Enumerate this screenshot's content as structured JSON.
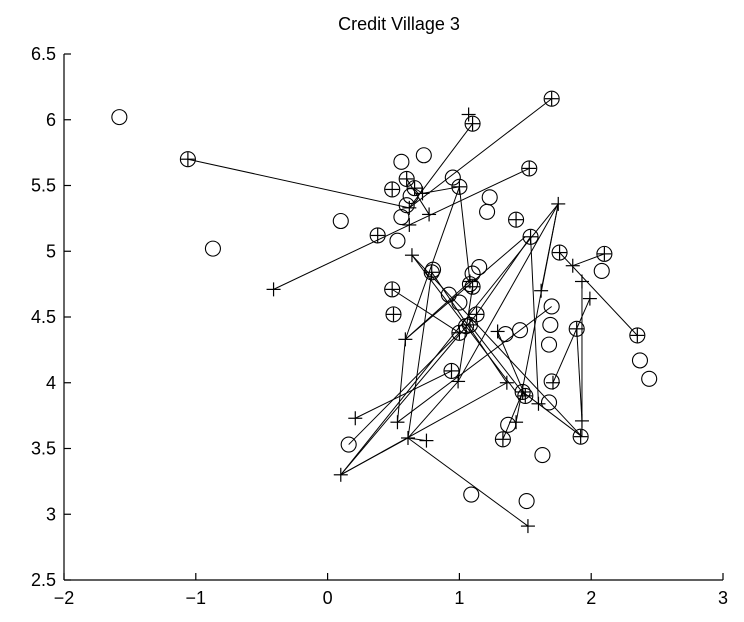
{
  "chart_data": {
    "type": "scatter",
    "title": "Credit Village 3",
    "xlabel": "",
    "ylabel": "",
    "xlim": [
      -2,
      3
    ],
    "ylim": [
      2.5,
      6.5
    ],
    "xticks": [
      "-2",
      "-1",
      "0",
      "1",
      "2",
      "3"
    ],
    "yticks": [
      "2.5",
      "3",
      "3.5",
      "4",
      "4.5",
      "5",
      "5.5",
      "6",
      "6.5"
    ],
    "grid": false,
    "legend": "none",
    "markers": {
      "circle": [
        [
          -1.58,
          6.02
        ],
        [
          -0.87,
          5.02
        ],
        [
          -1.06,
          5.7
        ],
        [
          1.7,
          6.16
        ],
        [
          1.1,
          5.97
        ],
        [
          0.56,
          5.68
        ],
        [
          0.73,
          5.73
        ],
        [
          0.6,
          5.55
        ],
        [
          0.66,
          5.48
        ],
        [
          0.49,
          5.47
        ],
        [
          0.95,
          5.56
        ],
        [
          1.0,
          5.49
        ],
        [
          1.53,
          5.63
        ],
        [
          0.1,
          5.23
        ],
        [
          0.56,
          5.26
        ],
        [
          0.6,
          5.35
        ],
        [
          0.63,
          5.42
        ],
        [
          1.23,
          5.41
        ],
        [
          1.21,
          5.3
        ],
        [
          1.43,
          5.24
        ],
        [
          0.38,
          5.12
        ],
        [
          0.53,
          5.08
        ],
        [
          1.54,
          5.11
        ],
        [
          1.76,
          4.99
        ],
        [
          2.1,
          4.98
        ],
        [
          2.08,
          4.85
        ],
        [
          0.79,
          4.84
        ],
        [
          0.8,
          4.86
        ],
        [
          1.1,
          4.83
        ],
        [
          1.15,
          4.88
        ],
        [
          1.08,
          4.75
        ],
        [
          1.1,
          4.73
        ],
        [
          0.49,
          4.71
        ],
        [
          1.0,
          4.61
        ],
        [
          0.92,
          4.67
        ],
        [
          1.7,
          4.58
        ],
        [
          1.13,
          4.52
        ],
        [
          1.69,
          4.44
        ],
        [
          0.5,
          4.52
        ],
        [
          1.08,
          4.44
        ],
        [
          1.05,
          4.43
        ],
        [
          1.0,
          4.38
        ],
        [
          1.35,
          4.37
        ],
        [
          1.46,
          4.4
        ],
        [
          1.89,
          4.41
        ],
        [
          2.35,
          4.36
        ],
        [
          1.68,
          4.29
        ],
        [
          2.37,
          4.17
        ],
        [
          2.44,
          4.03
        ],
        [
          0.94,
          4.09
        ],
        [
          1.7,
          4.01
        ],
        [
          1.48,
          3.93
        ],
        [
          1.5,
          3.9
        ],
        [
          1.68,
          3.85
        ],
        [
          1.37,
          3.68
        ],
        [
          1.33,
          3.57
        ],
        [
          1.92,
          3.59
        ],
        [
          0.16,
          3.53
        ],
        [
          1.63,
          3.45
        ],
        [
          1.09,
          3.15
        ],
        [
          1.51,
          3.1
        ]
      ],
      "plus": [
        [
          -1.06,
          5.7
        ],
        [
          1.7,
          6.16
        ],
        [
          1.07,
          6.04
        ],
        [
          1.1,
          5.97
        ],
        [
          0.6,
          5.55
        ],
        [
          0.49,
          5.47
        ],
        [
          0.66,
          5.48
        ],
        [
          0.72,
          5.44
        ],
        [
          1.0,
          5.49
        ],
        [
          0.62,
          5.33
        ],
        [
          0.77,
          5.28
        ],
        [
          1.53,
          5.63
        ],
        [
          0.38,
          5.12
        ],
        [
          0.62,
          5.2
        ],
        [
          1.43,
          5.24
        ],
        [
          1.75,
          5.36
        ],
        [
          1.54,
          5.11
        ],
        [
          1.76,
          4.99
        ],
        [
          2.1,
          4.98
        ],
        [
          1.86,
          4.89
        ],
        [
          0.64,
          4.97
        ],
        [
          0.79,
          4.84
        ],
        [
          -0.41,
          4.71
        ],
        [
          1.1,
          4.73
        ],
        [
          1.08,
          4.77
        ],
        [
          1.93,
          4.77
        ],
        [
          1.99,
          4.64
        ],
        [
          1.62,
          4.7
        ],
        [
          0.49,
          4.71
        ],
        [
          0.5,
          4.52
        ],
        [
          1.13,
          4.52
        ],
        [
          0.59,
          4.33
        ],
        [
          1.29,
          4.39
        ],
        [
          1.08,
          4.44
        ],
        [
          1.0,
          4.38
        ],
        [
          1.89,
          4.41
        ],
        [
          2.35,
          4.36
        ],
        [
          0.94,
          4.09
        ],
        [
          0.99,
          4.01
        ],
        [
          1.71,
          4.0
        ],
        [
          1.36,
          4.0
        ],
        [
          1.5,
          3.9
        ],
        [
          1.48,
          3.93
        ],
        [
          1.6,
          3.84
        ],
        [
          1.43,
          3.7
        ],
        [
          1.93,
          3.71
        ],
        [
          1.33,
          3.57
        ],
        [
          1.92,
          3.59
        ],
        [
          0.21,
          3.73
        ],
        [
          0.53,
          3.7
        ],
        [
          0.61,
          3.58
        ],
        [
          0.75,
          3.56
        ],
        [
          0.1,
          3.3
        ],
        [
          1.52,
          2.91
        ]
      ],
      "links": [
        [
          [
            -1.06,
            5.7
          ],
          [
            0.62,
            5.33
          ]
        ],
        [
          [
            0.62,
            5.33
          ],
          [
            1.7,
            6.16
          ]
        ],
        [
          [
            0.62,
            5.33
          ],
          [
            1.1,
            5.97
          ]
        ],
        [
          [
            0.66,
            5.48
          ],
          [
            0.72,
            5.44
          ]
        ],
        [
          [
            0.72,
            5.44
          ],
          [
            1.0,
            5.49
          ]
        ],
        [
          [
            0.6,
            5.55
          ],
          [
            0.77,
            5.28
          ]
        ],
        [
          [
            -0.41,
            4.71
          ],
          [
            0.62,
            5.2
          ]
        ],
        [
          [
            0.62,
            5.2
          ],
          [
            1.53,
            5.63
          ]
        ],
        [
          [
            1.0,
            5.49
          ],
          [
            0.59,
            4.33
          ]
        ],
        [
          [
            1.0,
            5.49
          ],
          [
            1.08,
            4.77
          ]
        ],
        [
          [
            1.75,
            5.36
          ],
          [
            0.99,
            4.01
          ]
        ],
        [
          [
            1.75,
            5.36
          ],
          [
            1.62,
            4.7
          ]
        ],
        [
          [
            1.75,
            5.36
          ],
          [
            0.1,
            3.3
          ]
        ],
        [
          [
            1.54,
            5.11
          ],
          [
            1.6,
            3.84
          ]
        ],
        [
          [
            1.54,
            5.11
          ],
          [
            1.13,
            4.52
          ]
        ],
        [
          [
            0.64,
            4.97
          ],
          [
            1.93,
            3.59
          ]
        ],
        [
          [
            0.64,
            4.97
          ],
          [
            1.43,
            3.93
          ]
        ],
        [
          [
            1.86,
            4.89
          ],
          [
            2.1,
            4.98
          ]
        ],
        [
          [
            0.79,
            4.84
          ],
          [
            1.36,
            4.0
          ]
        ],
        [
          [
            0.79,
            4.84
          ],
          [
            0.61,
            3.58
          ]
        ],
        [
          [
            1.08,
            4.77
          ],
          [
            0.59,
            4.33
          ]
        ],
        [
          [
            1.1,
            4.73
          ],
          [
            0.99,
            4.01
          ]
        ],
        [
          [
            1.93,
            4.77
          ],
          [
            1.93,
            3.59
          ]
        ],
        [
          [
            1.99,
            4.64
          ],
          [
            1.71,
            4.0
          ]
        ],
        [
          [
            1.29,
            4.39
          ],
          [
            1.5,
            3.9
          ]
        ],
        [
          [
            0.59,
            4.33
          ],
          [
            0.53,
            3.7
          ]
        ],
        [
          [
            0.59,
            4.33
          ],
          [
            1.5,
            5.11
          ]
        ],
        [
          [
            0.21,
            3.73
          ],
          [
            0.94,
            4.09
          ]
        ],
        [
          [
            1.89,
            4.41
          ],
          [
            1.93,
            3.71
          ]
        ],
        [
          [
            2.35,
            4.36
          ],
          [
            1.76,
            4.99
          ]
        ],
        [
          [
            0.99,
            4.01
          ],
          [
            0.61,
            3.58
          ]
        ],
        [
          [
            0.16,
            3.53
          ],
          [
            1.0,
            4.38
          ]
        ],
        [
          [
            0.1,
            3.3
          ],
          [
            0.61,
            3.58
          ]
        ],
        [
          [
            0.1,
            3.3
          ],
          [
            1.13,
            4.52
          ]
        ],
        [
          [
            0.1,
            3.3
          ],
          [
            1.36,
            4.0
          ]
        ],
        [
          [
            0.61,
            3.58
          ],
          [
            1.52,
            2.91
          ]
        ],
        [
          [
            0.61,
            3.58
          ],
          [
            0.75,
            3.56
          ]
        ],
        [
          [
            0.53,
            3.7
          ],
          [
            1.7,
            4.58
          ]
        ],
        [
          [
            1.43,
            3.7
          ],
          [
            1.75,
            5.36
          ]
        ],
        [
          [
            1.33,
            3.57
          ],
          [
            1.48,
            3.93
          ]
        ],
        [
          [
            1.6,
            3.84
          ],
          [
            1.93,
            3.59
          ]
        ],
        [
          [
            1.48,
            3.93
          ],
          [
            1.6,
            3.84
          ]
        ],
        [
          [
            0.49,
            4.71
          ],
          [
            1.0,
            4.38
          ]
        ],
        [
          [
            1.08,
            4.44
          ],
          [
            1.5,
            3.9
          ]
        ]
      ]
    }
  }
}
